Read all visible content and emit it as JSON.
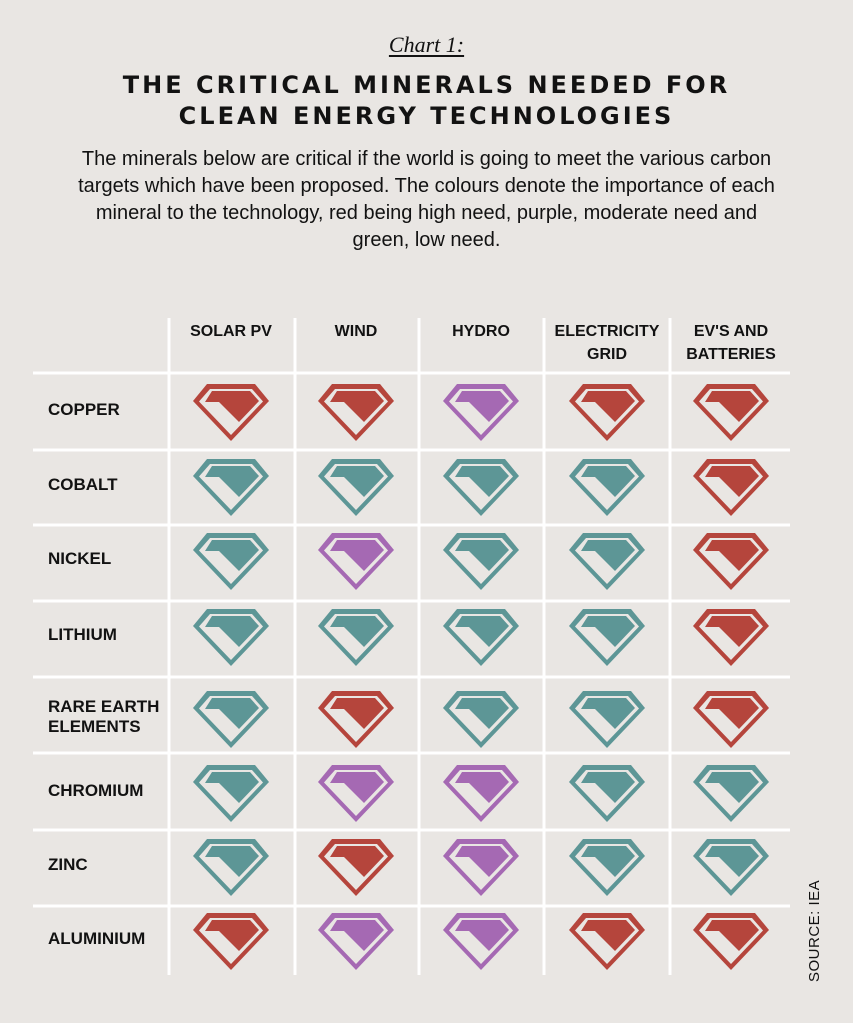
{
  "chart_label": "Chart 1:",
  "title_lines": [
    "THE CRITICAL MINERALS NEEDED FOR",
    "CLEAN ENERGY TECHNOLOGIES"
  ],
  "description": "The minerals below are critical if the world is going to meet the various carbon targets which have been proposed. The colours denote the importance of each mineral to the technology, red being high need, purple, moderate need and green, low need.",
  "source": "SOURCE: IEA",
  "need_colors": {
    "high": "#b5453c",
    "moderate": "#a569b3",
    "low": "#5d9696"
  },
  "chart_data": {
    "type": "table",
    "columns": [
      [
        "SOLAR PV"
      ],
      [
        "WIND"
      ],
      [
        "HYDRO"
      ],
      [
        "ELECTRICITY",
        "GRID"
      ],
      [
        "EV'S AND",
        "BATTERIES"
      ]
    ],
    "rows": [
      {
        "label": [
          "COPPER"
        ],
        "need": [
          "high",
          "high",
          "moderate",
          "high",
          "high"
        ]
      },
      {
        "label": [
          "COBALT"
        ],
        "need": [
          "low",
          "low",
          "low",
          "low",
          "high"
        ]
      },
      {
        "label": [
          "NICKEL"
        ],
        "need": [
          "low",
          "moderate",
          "low",
          "low",
          "high"
        ]
      },
      {
        "label": [
          "LITHIUM"
        ],
        "need": [
          "low",
          "low",
          "low",
          "low",
          "high"
        ]
      },
      {
        "label": [
          "RARE EARTH",
          "ELEMENTS"
        ],
        "need": [
          "low",
          "high",
          "low",
          "low",
          "high"
        ]
      },
      {
        "label": [
          "CHROMIUM"
        ],
        "need": [
          "low",
          "moderate",
          "moderate",
          "low",
          "low"
        ]
      },
      {
        "label": [
          "ZINC"
        ],
        "need": [
          "low",
          "high",
          "moderate",
          "low",
          "low"
        ]
      },
      {
        "label": [
          "ALUMINIUM"
        ],
        "need": [
          "high",
          "moderate",
          "moderate",
          "high",
          "high"
        ]
      }
    ]
  }
}
